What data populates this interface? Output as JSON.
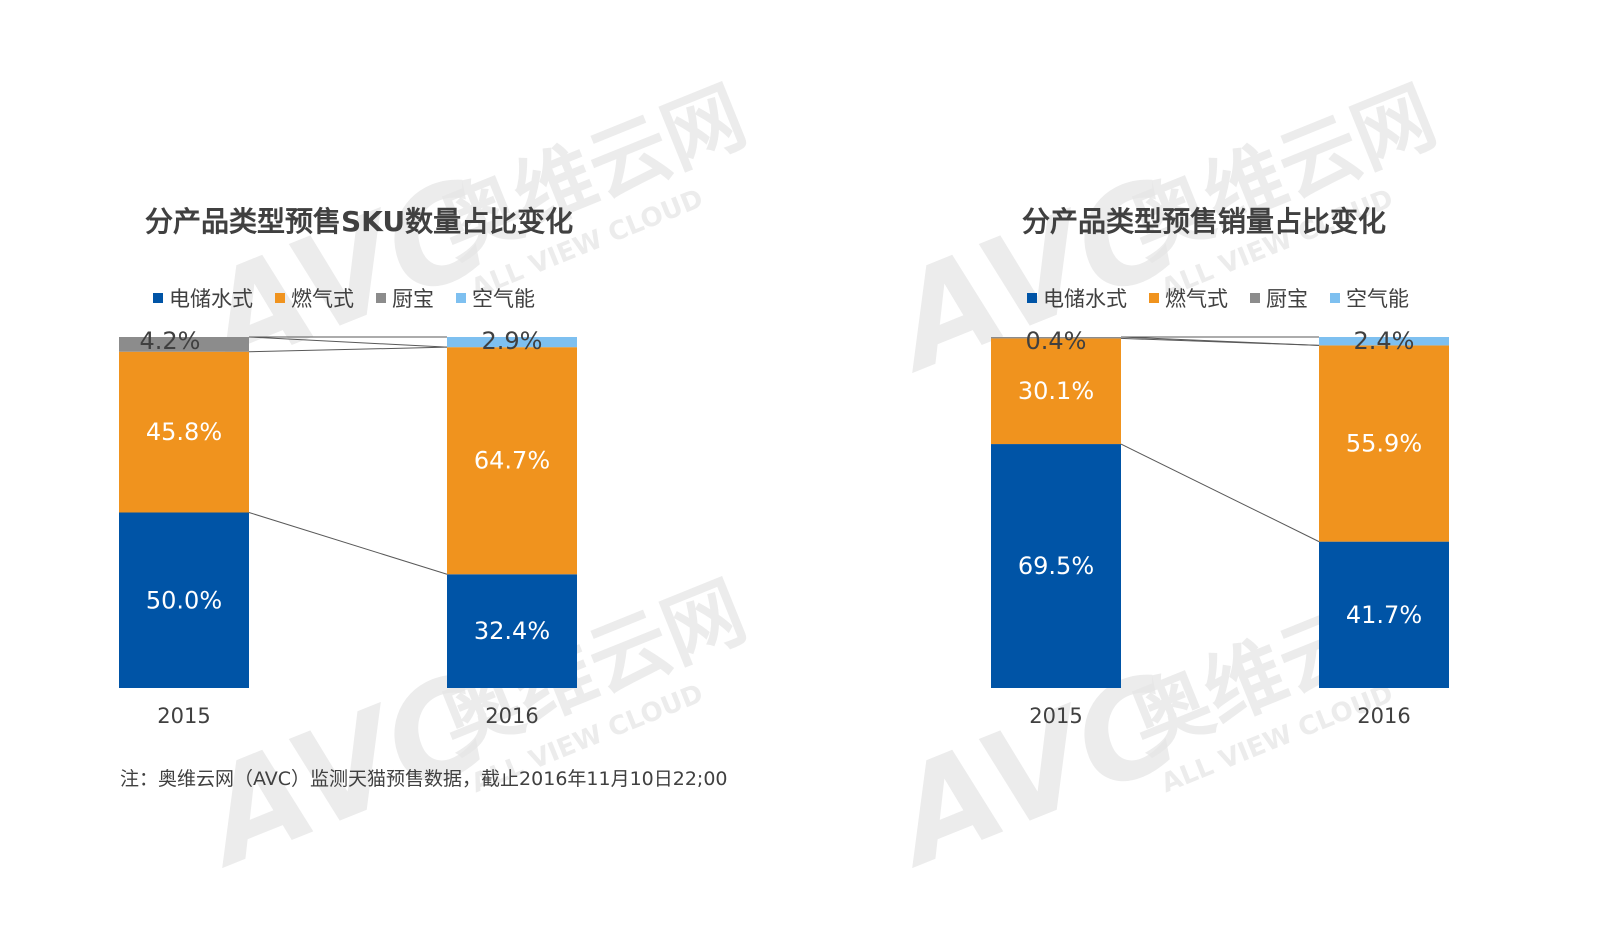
{
  "colors": {
    "electric_storage": "#0054A6",
    "gas": "#F0931E",
    "kitchen": "#8C8C8C",
    "air_energy": "#7EC0F0",
    "watermark": "#E6E6E6"
  },
  "watermark": {
    "logo": "AVC",
    "cn": "奥维云网",
    "en": "ALL VIEW CLOUD"
  },
  "chart_data": [
    {
      "type": "bar",
      "stacked": true,
      "title": "分产品类型预售SKU数量占比变化",
      "categories": [
        "2015",
        "2016"
      ],
      "series": [
        {
          "name": "电储水式",
          "values": [
            50.0,
            32.4
          ],
          "labels": [
            "50.0%",
            "32.4%"
          ]
        },
        {
          "name": "燃气式",
          "values": [
            45.8,
            64.7
          ],
          "labels": [
            "45.8%",
            "64.7%"
          ]
        },
        {
          "name": "厨宝",
          "values": [
            4.2,
            0.0
          ],
          "labels": [
            "4.2%",
            ""
          ]
        },
        {
          "name": "空气能",
          "values": [
            0.0,
            2.9
          ],
          "labels": [
            "",
            "2.9%"
          ]
        }
      ],
      "ylim": [
        0,
        100
      ],
      "legend": "top-left",
      "grid": false
    },
    {
      "type": "bar",
      "stacked": true,
      "title": "分产品类型预售销量占比变化",
      "categories": [
        "2015",
        "2016"
      ],
      "series": [
        {
          "name": "电储水式",
          "values": [
            69.5,
            41.7
          ],
          "labels": [
            "69.5%",
            "41.7%"
          ]
        },
        {
          "name": "燃气式",
          "values": [
            30.1,
            55.9
          ],
          "labels": [
            "30.1%",
            "55.9%"
          ]
        },
        {
          "name": "厨宝",
          "values": [
            0.4,
            0.0
          ],
          "labels": [
            "0.4%",
            ""
          ]
        },
        {
          "name": "空气能",
          "values": [
            0.0,
            2.4
          ],
          "labels": [
            "",
            "2.4%"
          ]
        }
      ],
      "ylim": [
        0,
        100
      ],
      "legend": "top-left",
      "grid": false
    }
  ],
  "note": "注：奥维云网（AVC）监测天猫预售数据，截止2016年11月10日22;00"
}
